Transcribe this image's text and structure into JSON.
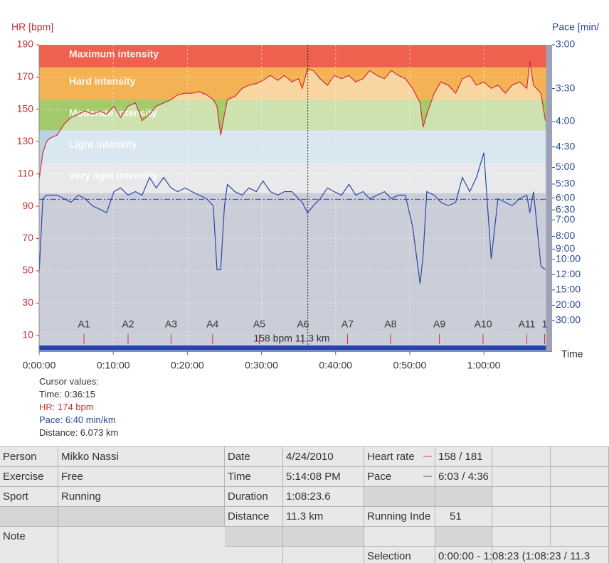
{
  "chart_data": {
    "type": "line",
    "y_label": "HR [bpm]",
    "y2_label": "Pace [min/",
    "x_label": "Time",
    "xlim": [
      0,
      68.39
    ],
    "xticks": [
      {
        "value": 0,
        "label": "0:00:00"
      },
      {
        "value": 10,
        "label": "0:10:00"
      },
      {
        "value": 20,
        "label": "0:20:00"
      },
      {
        "value": 30,
        "label": "0:30:00"
      },
      {
        "value": 40,
        "label": "0:40:00"
      },
      {
        "value": 50,
        "label": "0:50:00"
      },
      {
        "value": 60,
        "label": "1:00:00"
      }
    ],
    "ylim": [
      0,
      190
    ],
    "yticks": [
      10,
      30,
      50,
      70,
      90,
      110,
      130,
      150,
      170,
      190
    ],
    "y2scale": "reciprocal",
    "y2lim": [
      3,
      30
    ],
    "y2ticks": [
      {
        "value": 3,
        "label": "3:00"
      },
      {
        "value": 3.5,
        "label": "3:30"
      },
      {
        "value": 4,
        "label": "4:00"
      },
      {
        "value": 4.5,
        "label": "4:30"
      },
      {
        "value": 5,
        "label": "5:00"
      },
      {
        "value": 5.5,
        "label": "5:30"
      },
      {
        "value": 6,
        "label": "6:00"
      },
      {
        "value": 6.5,
        "label": "6:30"
      },
      {
        "value": 7,
        "label": "7:00"
      },
      {
        "value": 8,
        "label": "8:00"
      },
      {
        "value": 9,
        "label": "9:00"
      },
      {
        "value": 10,
        "label": "10:00"
      },
      {
        "value": 12,
        "label": "12:00"
      },
      {
        "value": 15,
        "label": "15:00"
      },
      {
        "value": 20,
        "label": "20:00"
      },
      {
        "value": 30,
        "label": "30:00"
      }
    ],
    "grid": true,
    "zones": [
      {
        "name": "Maximum intensity",
        "from": 176,
        "to": 190,
        "color": "#ef604f"
      },
      {
        "name": "Hard intensity",
        "from": 156,
        "to": 176,
        "color": "#f5b255"
      },
      {
        "name": "Moderate intensity",
        "from": 137,
        "to": 156,
        "color": "#a5ca6c"
      },
      {
        "name": "Light intensity",
        "from": 117,
        "to": 137,
        "color": "#b9d3e4"
      },
      {
        "name": "Very light intensity",
        "from": 98,
        "to": 117,
        "color": "#d8d8da"
      }
    ],
    "x": [
      0,
      0.5,
      1.0,
      1.4,
      2.4,
      3.4,
      4.3,
      5.3,
      6.2,
      7.2,
      8.2,
      9.1,
      10.1,
      11.0,
      12.0,
      13.0,
      13.9,
      14.9,
      15.8,
      16.8,
      17.8,
      18.7,
      19.7,
      20.6,
      21.6,
      22.6,
      23.5,
      24.0,
      24.5,
      25.0,
      25.4,
      26.4,
      27.4,
      28.3,
      29.3,
      30.2,
      31.2,
      32.2,
      33.1,
      34.1,
      35.0,
      35.5,
      36.2,
      37.0,
      37.9,
      38.9,
      39.8,
      40.8,
      41.8,
      42.7,
      43.7,
      44.6,
      45.6,
      46.6,
      47.5,
      48.5,
      49.4,
      50.4,
      51.4,
      51.8,
      52.3,
      53.3,
      54.2,
      55.2,
      56.2,
      57.1,
      58.1,
      59.0,
      60.0,
      61.0,
      61.9,
      62.9,
      63.8,
      64.8,
      65.8,
      66.2,
      66.7,
      67.7,
      68.3
    ],
    "series": [
      {
        "name": "HR",
        "color": "#d03030",
        "axis": "y",
        "values": [
          107,
          123,
          130,
          132,
          134,
          141,
          145,
          147,
          149,
          147,
          149,
          147,
          152,
          145,
          152,
          154,
          143,
          147,
          152,
          154,
          156,
          159,
          160,
          160,
          161,
          159,
          156,
          152,
          134,
          147,
          156,
          158,
          163,
          165,
          166,
          168,
          171,
          168,
          171,
          167,
          169,
          163,
          175,
          174,
          169,
          165,
          171,
          169,
          171,
          167,
          169,
          174,
          171,
          169,
          174,
          171,
          169,
          163,
          154,
          139,
          147,
          160,
          167,
          165,
          160,
          169,
          171,
          165,
          167,
          163,
          165,
          160,
          165,
          167,
          163,
          180,
          165,
          160,
          143
        ]
      },
      {
        "name": "Pace",
        "color": "#2a48a0",
        "axis": "y2",
        "values": [
          11.79,
          6.03,
          5.89,
          5.89,
          5.89,
          6.03,
          6.17,
          5.89,
          6.03,
          6.32,
          6.48,
          6.64,
          5.76,
          5.63,
          5.89,
          5.76,
          5.89,
          5.29,
          5.63,
          5.29,
          5.63,
          5.76,
          5.63,
          5.76,
          5.89,
          6.03,
          6.32,
          11.28,
          11.28,
          6.32,
          5.51,
          5.76,
          5.89,
          5.63,
          5.76,
          5.4,
          5.76,
          5.89,
          5.76,
          5.76,
          6.03,
          6.17,
          6.64,
          6.32,
          6.03,
          5.63,
          5.76,
          5.89,
          5.51,
          5.89,
          5.76,
          6.03,
          5.89,
          5.76,
          6.03,
          5.89,
          5.89,
          7.41,
          13.64,
          9.6,
          5.76,
          5.89,
          6.17,
          6.32,
          6.17,
          5.29,
          5.76,
          5.29,
          4.63,
          9.97,
          6.03,
          6.17,
          6.32,
          6.03,
          5.89,
          6.64,
          5.76,
          10.79,
          11.28
        ]
      }
    ],
    "pace_average": 6.05,
    "cursor_x": 36.25,
    "laps": {
      "labels": [
        "A1",
        "A2",
        "A3",
        "A4",
        "A5",
        "A6",
        "A7",
        "A8",
        "A9",
        "A10",
        "A11",
        "1"
      ],
      "x": [
        6.05,
        12.0,
        17.8,
        23.4,
        29.7,
        35.6,
        41.6,
        47.4,
        54.0,
        59.9,
        65.8,
        68.2
      ]
    },
    "summary_label": "158 bpm 11.3 km"
  },
  "cursor_values": {
    "heading": "Cursor values:",
    "time": "Time: 0:36:15",
    "hr": "HR: 174 bpm",
    "pace": "Pace: 6:40 min/km",
    "distance": "Distance: 6.073 km"
  },
  "table": {
    "rows": [
      [
        "Person",
        "Mikko Nassi",
        "Date",
        "4/24/2010",
        "Heart rate",
        "158 / 181"
      ],
      [
        "Exercise",
        "Free",
        "Time",
        "5:14:08 PM",
        "Pace",
        "6:03 / 4:36"
      ],
      [
        "Sport",
        "Running",
        "Duration",
        "1:08:23.6"
      ],
      [
        "Distance",
        "11.3 km",
        "Running Inde",
        "51"
      ],
      [
        "Note"
      ],
      [
        "Selection",
        "0:00:00 - 1:08:23 (1:08:23 / 11.3"
      ]
    ]
  }
}
